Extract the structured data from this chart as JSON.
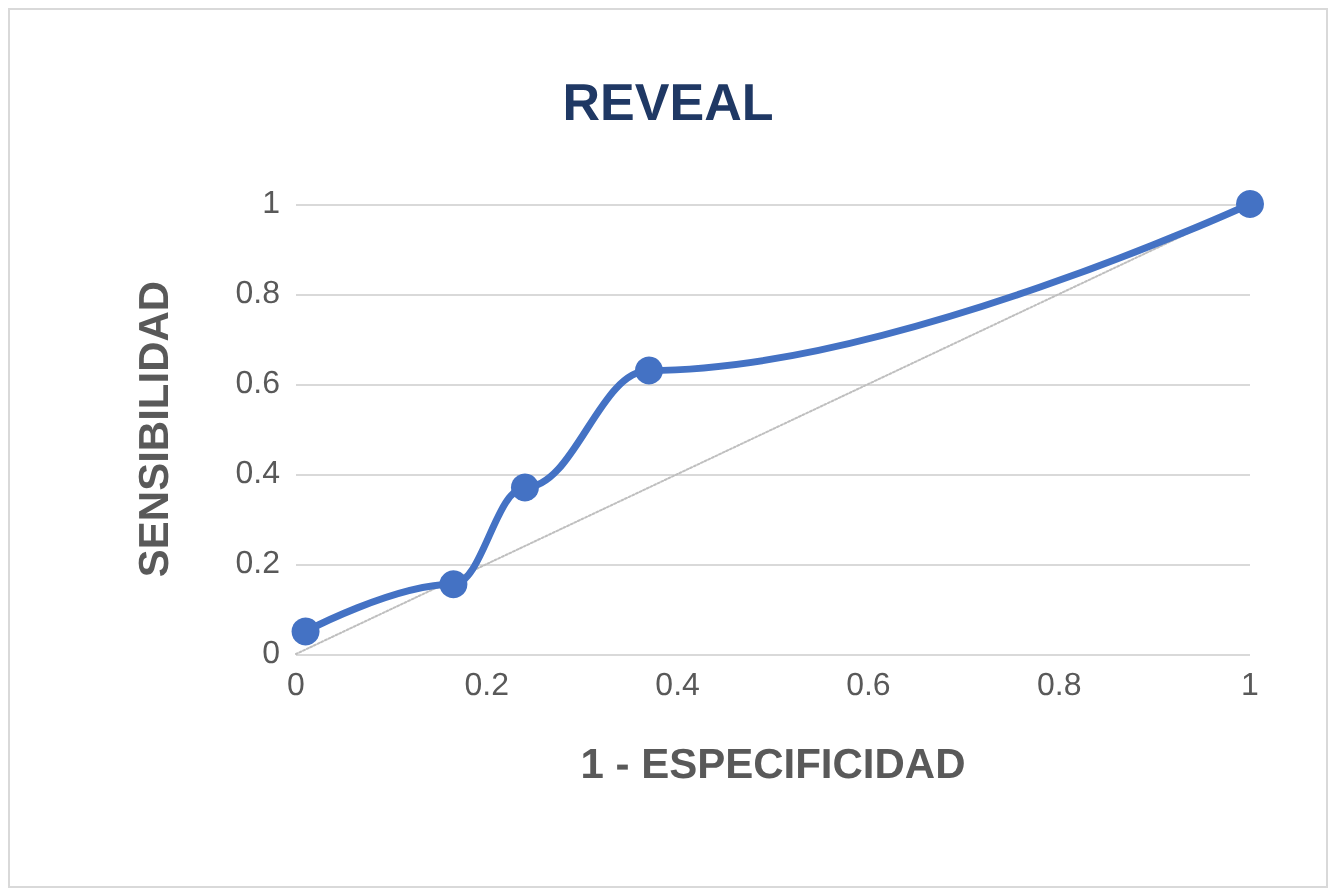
{
  "chart_data": {
    "type": "line",
    "title": "REVEAL",
    "xlabel": "1 - ESPECIFICIDAD",
    "ylabel": "SENSIBILIDAD",
    "xlim": [
      0,
      1
    ],
    "xticks": [
      0,
      0.2,
      0.4,
      0.6,
      0.8,
      1
    ],
    "ylim": [
      0,
      1
    ],
    "yticks": [
      0,
      0.2,
      0.4,
      0.6,
      0.8,
      1
    ],
    "grid": "y",
    "marker": "circle",
    "series": [
      {
        "color": "#4472c4",
        "x": [
          0.01,
          0.165,
          0.24,
          0.37,
          1
        ],
        "values": [
          0.05,
          0.155,
          0.37,
          0.63,
          1
        ]
      },
      {
        "color": "#bfbfbf",
        "x": [
          0,
          1
        ],
        "values": [
          0,
          1
        ],
        "marker": "none",
        "line_style": "dotted"
      }
    ]
  }
}
